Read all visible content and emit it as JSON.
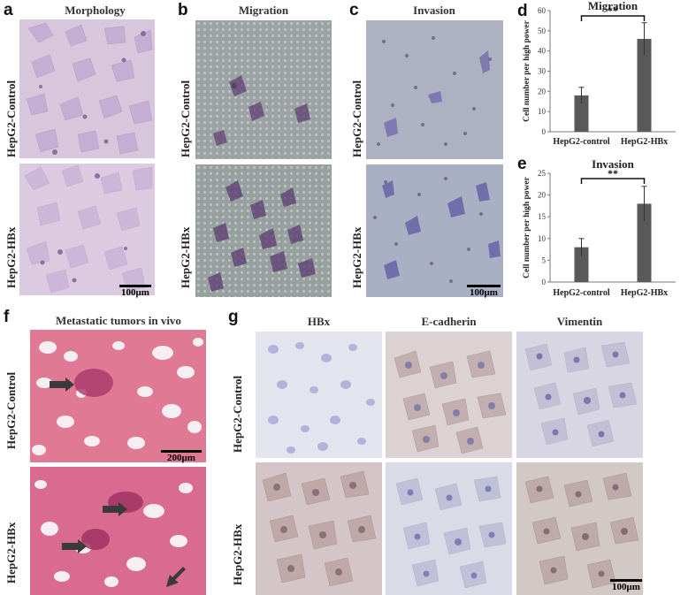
{
  "panels": {
    "a": {
      "letter": "a",
      "title": "Morphology",
      "rows": [
        "HepG2-Control",
        "HepG2-HBx"
      ],
      "scale": "100μm"
    },
    "b": {
      "letter": "b",
      "title": "Migration",
      "rows": [
        "HepG2-Control",
        "HepG2-HBx"
      ]
    },
    "c": {
      "letter": "c",
      "title": "Invasion",
      "rows": [
        "HepG2-Control",
        "HepG2-HBx"
      ],
      "scale": "100μm"
    },
    "f": {
      "letter": "f",
      "title": "Metastatic tumors in vivo",
      "rows": [
        "HepG2-Control",
        "HepG2-HBx"
      ],
      "scale": "200μm"
    },
    "g": {
      "letter": "g",
      "columns": [
        "HBx",
        "E-cadherin",
        "Vimentin"
      ],
      "rows": [
        "HepG2-Control",
        "HepG2-HBx"
      ],
      "scale": "100μm"
    }
  },
  "colors": {
    "morphology_bg": "#d8c6dc",
    "migration_bg": "#9aa2a4",
    "invasion_bg": "#aeb1c4",
    "he_bg": "#e07a94",
    "ihc_bg": "#e4e2ea",
    "bar_fill": "#595959"
  },
  "chart_data": [
    {
      "panel": "d",
      "type": "bar",
      "title": "Migration",
      "categories": [
        "HepG2-control",
        "HepG2-HBx"
      ],
      "values": [
        18,
        46
      ],
      "errors": [
        4,
        8
      ],
      "ylabel": "Cell number per high power",
      "ylim": [
        0,
        60
      ],
      "yticks": [
        0,
        10,
        20,
        30,
        40,
        50,
        60
      ],
      "significance": "**",
      "grid": false
    },
    {
      "panel": "e",
      "type": "bar",
      "title": "Invasion",
      "categories": [
        "HepG2-control",
        "HepG2-HBx"
      ],
      "values": [
        8,
        18
      ],
      "errors": [
        2,
        4
      ],
      "ylabel": "Cell number per high power",
      "ylim": [
        0,
        25
      ],
      "yticks": [
        0,
        5,
        10,
        15,
        20,
        25
      ],
      "significance": "**",
      "grid": false
    }
  ]
}
